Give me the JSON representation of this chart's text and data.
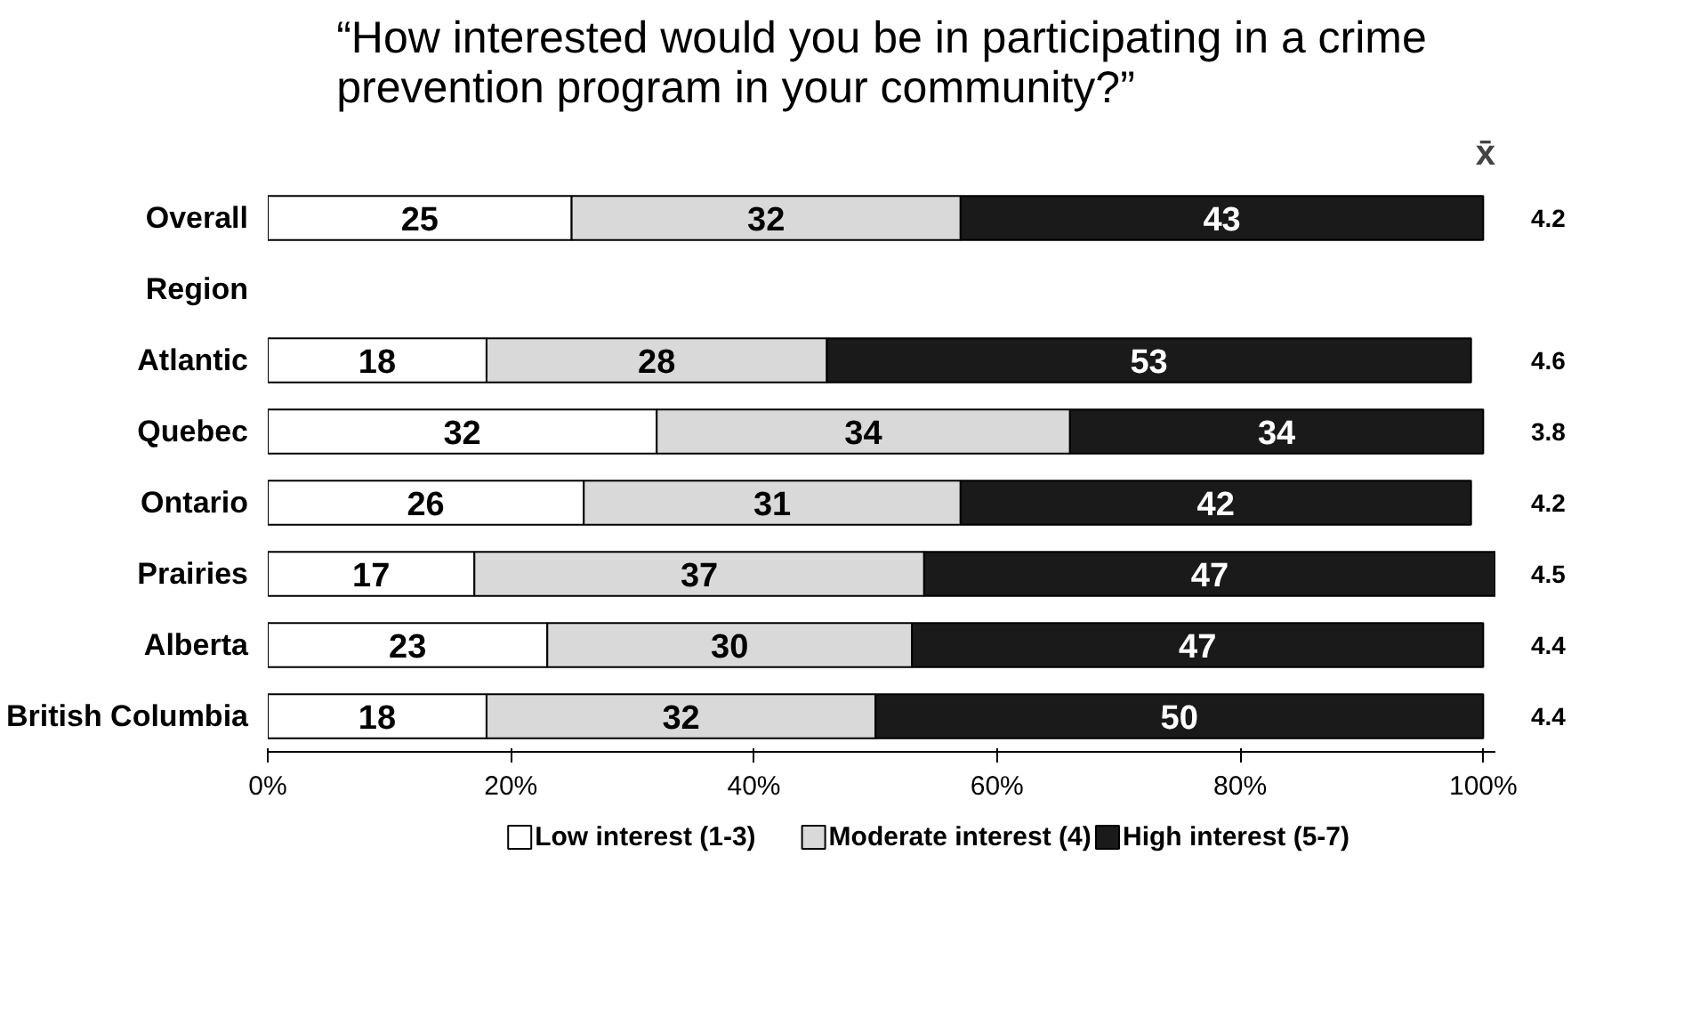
{
  "chart_data": {
    "type": "bar",
    "orientation": "horizontal",
    "stacked": true,
    "title": "“How interested would you be in participating in a crime prevention program in your community?”",
    "categories": [
      "Overall",
      "Region",
      "Atlantic",
      "Quebec",
      "Ontario",
      "Prairies",
      "Alberta",
      "British Columbia"
    ],
    "series": [
      {
        "name": "Low interest (1-3)",
        "color": "#ffffff",
        "values": [
          25,
          null,
          18,
          32,
          26,
          17,
          23,
          18
        ]
      },
      {
        "name": "Moderate interest (4)",
        "color": "#d9d9d9",
        "values": [
          32,
          null,
          28,
          34,
          31,
          37,
          30,
          32
        ]
      },
      {
        "name": "High interest (5-7)",
        "color": "#1a1a1a",
        "values": [
          43,
          null,
          53,
          34,
          42,
          47,
          47,
          50
        ]
      }
    ],
    "data_labels": true,
    "xlim": [
      0,
      101
    ],
    "xticks": [
      {
        "value": 0,
        "label": "0%"
      },
      {
        "value": 20,
        "label": "20%"
      },
      {
        "value": 40,
        "label": "40%"
      },
      {
        "value": 60,
        "label": "60%"
      },
      {
        "value": 80,
        "label": "80%"
      },
      {
        "value": 100,
        "label": "100%"
      }
    ],
    "legend": "bottom",
    "annotations": [
      "x̄",
      "4.2",
      "4.6",
      "3.8",
      "4.2",
      "4.5",
      "4.4",
      "4.4"
    ]
  }
}
